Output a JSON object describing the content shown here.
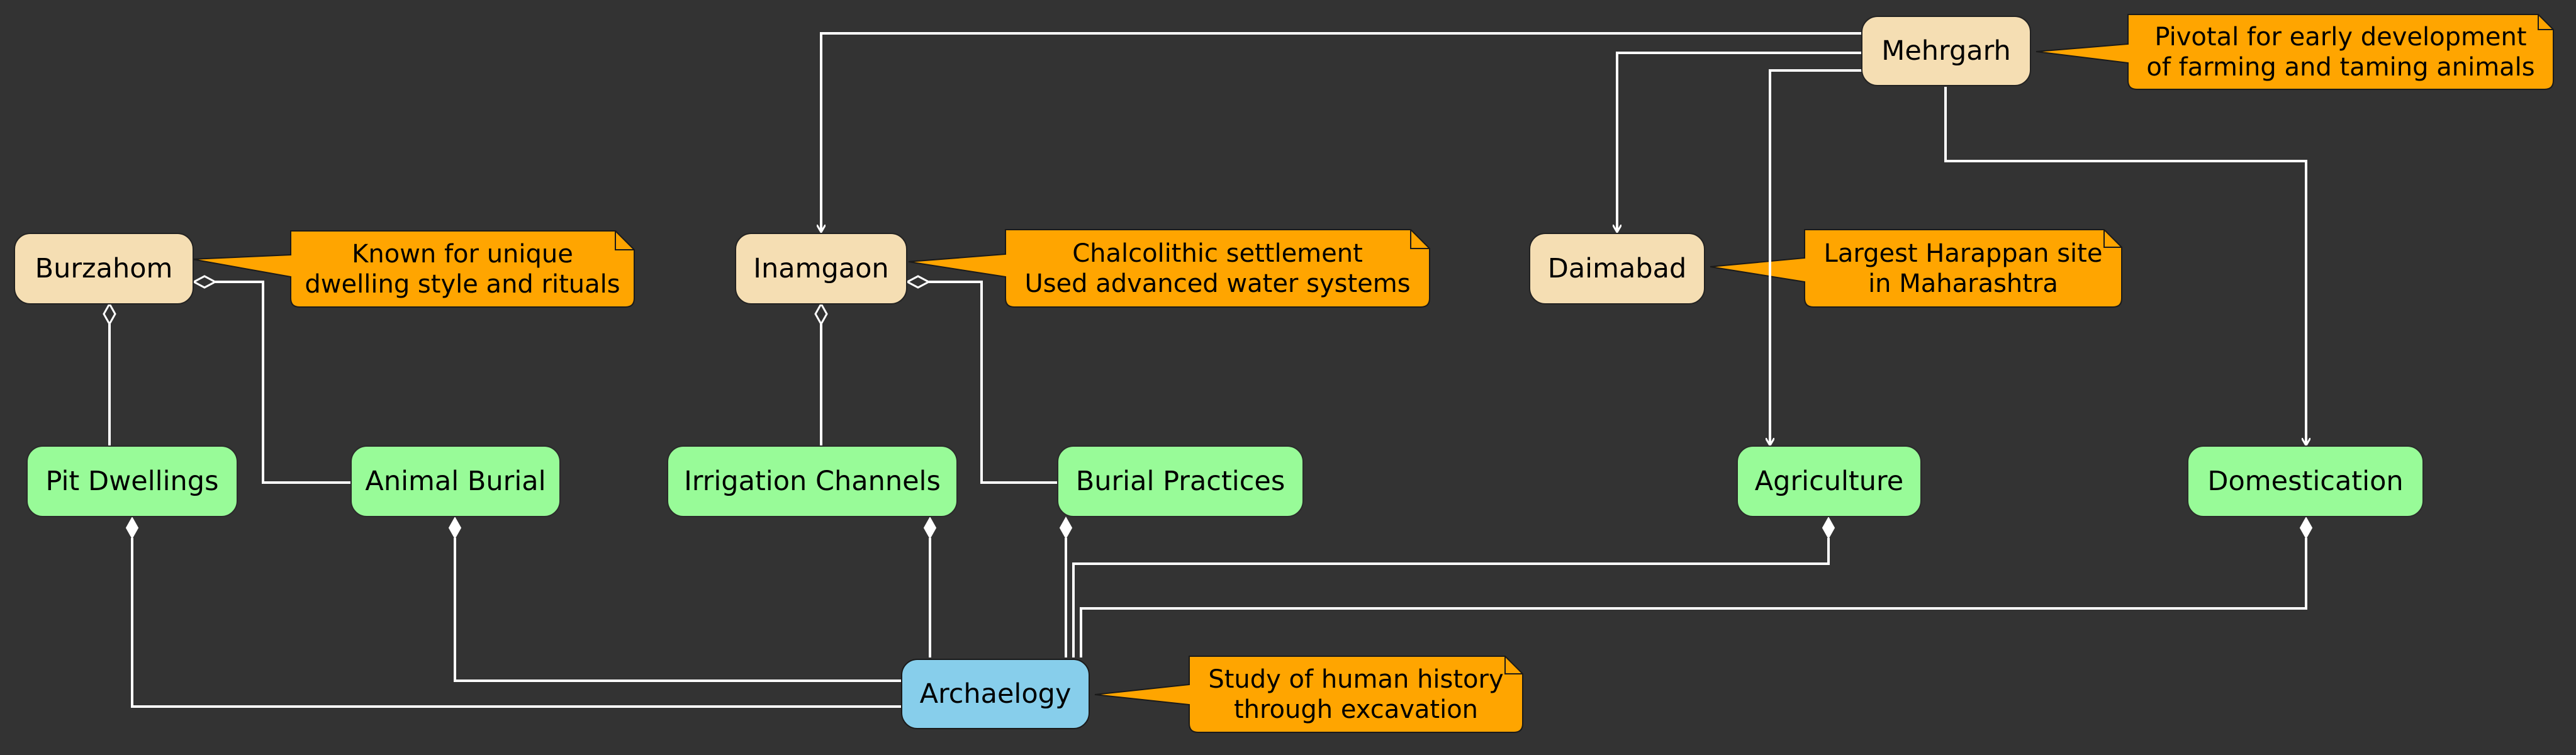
{
  "nodes": {
    "mehrgarh": "Mehrgarh",
    "burzahom": "Burzahom",
    "inamgaon": "Inamgaon",
    "daimabad": "Daimabad",
    "pit_dwellings": "Pit Dwellings",
    "animal_burial": "Animal Burial",
    "irrigation_channels": "Irrigation Channels",
    "burial_practices": "Burial Practices",
    "agriculture": "Agriculture",
    "domestication": "Domestication",
    "archaelogy": "Archaelogy"
  },
  "notes": {
    "mehrgarh": [
      "Pivotal for early development",
      "of farming and taming animals"
    ],
    "burzahom": [
      "Known for unique",
      "dwelling style and rituals"
    ],
    "inamgaon": [
      "Chalcolithic settlement",
      "Used advanced water systems"
    ],
    "daimabad": [
      "Largest Harappan site",
      "in Maharashtra"
    ],
    "archaelogy": [
      "Study of human history",
      "through excavation"
    ]
  },
  "colors": {
    "background": "#333333",
    "site_node": "#F5DEB3",
    "feature_node": "#98FB98",
    "root_node": "#87CEEB",
    "note": "#FFA500",
    "edge": "#FFFFFF"
  }
}
